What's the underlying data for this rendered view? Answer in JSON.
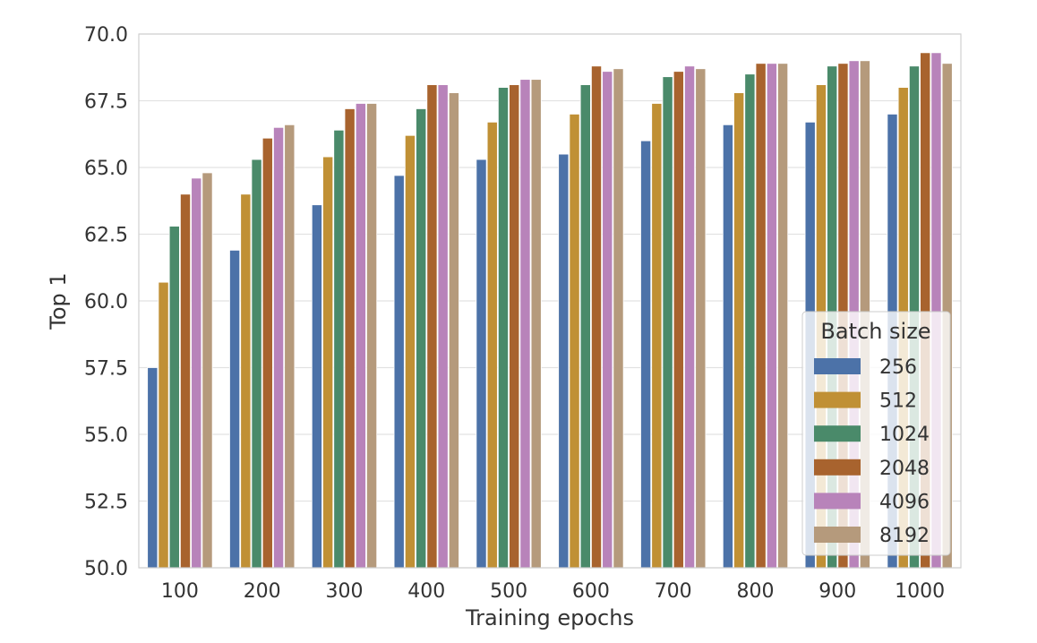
{
  "chart_data": {
    "type": "bar",
    "xlabel": "Training epochs",
    "ylabel": "Top 1",
    "ylim": [
      50.0,
      70.0
    ],
    "yticks": [
      "50.0",
      "52.5",
      "55.0",
      "57.5",
      "60.0",
      "62.5",
      "65.0",
      "67.5",
      "70.0"
    ],
    "categories": [
      "100",
      "200",
      "300",
      "400",
      "500",
      "600",
      "700",
      "800",
      "900",
      "1000"
    ],
    "grid": "horizontal",
    "legend": {
      "title": "Batch size",
      "placement": "lower-right"
    },
    "series": [
      {
        "name": "256",
        "color": "#4c72a8",
        "values": [
          57.5,
          61.9,
          63.6,
          64.7,
          65.3,
          65.5,
          66.0,
          66.6,
          66.7,
          67.0
        ]
      },
      {
        "name": "512",
        "color": "#c09035",
        "values": [
          60.7,
          64.0,
          65.4,
          66.2,
          66.7,
          67.0,
          67.4,
          67.8,
          68.1,
          68.0
        ]
      },
      {
        "name": "1024",
        "color": "#4a8a6a",
        "values": [
          62.8,
          65.3,
          66.4,
          67.2,
          68.0,
          68.1,
          68.4,
          68.5,
          68.8,
          68.8
        ]
      },
      {
        "name": "2048",
        "color": "#a8632e",
        "values": [
          64.0,
          66.1,
          67.2,
          68.1,
          68.1,
          68.8,
          68.6,
          68.9,
          68.9,
          69.3
        ]
      },
      {
        "name": "4096",
        "color": "#b883ba",
        "values": [
          64.6,
          66.5,
          67.4,
          68.1,
          68.3,
          68.6,
          68.8,
          68.9,
          69.0,
          69.3
        ]
      },
      {
        "name": "8192",
        "color": "#b59a7c",
        "values": [
          64.8,
          66.6,
          67.4,
          67.8,
          68.3,
          68.7,
          68.7,
          68.9,
          69.0,
          68.9
        ]
      }
    ]
  }
}
